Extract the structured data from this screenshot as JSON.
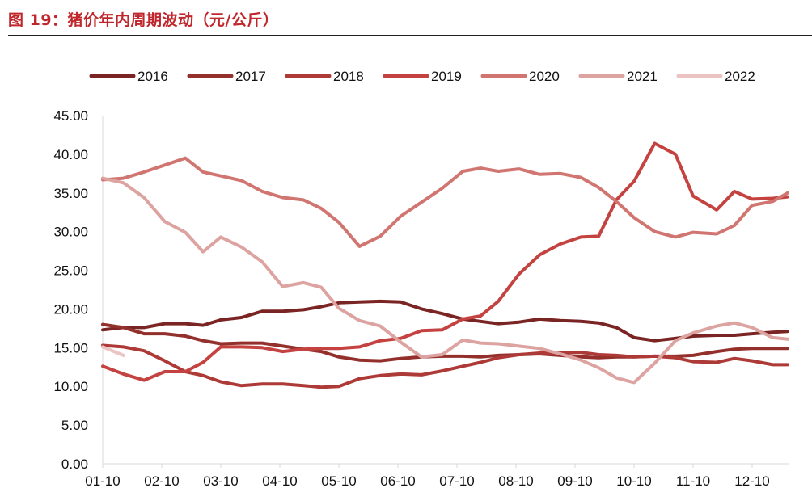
{
  "page": {
    "title": "图 19：猪价年内周期波动（元/公斤）"
  },
  "chart_data": {
    "type": "line",
    "title": "",
    "xlabel": "",
    "ylabel": "",
    "ylim": [
      0,
      45
    ],
    "yticks": [
      "0.00",
      "5.00",
      "10.00",
      "15.00",
      "20.00",
      "25.00",
      "30.00",
      "35.00",
      "40.00",
      "45.00"
    ],
    "categories": [
      "01-10",
      "02-10",
      "03-10",
      "04-10",
      "05-10",
      "06-10",
      "07-10",
      "08-10",
      "09-10",
      "10-10",
      "11-10",
      "12-10"
    ],
    "x_range": [
      0,
      11.6
    ],
    "grid": false,
    "legend_position": "top",
    "series": [
      {
        "name": "2016",
        "color": "#7a2424",
        "x": [
          0,
          0.35,
          0.7,
          1.05,
          1.4,
          1.7,
          2.0,
          2.35,
          2.7,
          3.05,
          3.4,
          3.7,
          4.0,
          4.35,
          4.7,
          5.05,
          5.4,
          5.75,
          6.1,
          6.4,
          6.7,
          7.05,
          7.4,
          7.75,
          8.1,
          8.4,
          8.7,
          9.0,
          9.35,
          9.7,
          10.0,
          10.4,
          10.7,
          11.0,
          11.35,
          11.6
        ],
        "y": [
          17.3,
          17.6,
          17.6,
          18.1,
          18.1,
          17.9,
          18.6,
          18.9,
          19.7,
          19.7,
          19.9,
          20.3,
          20.8,
          20.9,
          21.0,
          20.9,
          20.0,
          19.4,
          18.7,
          18.4,
          18.1,
          18.3,
          18.7,
          18.5,
          18.4,
          18.2,
          17.6,
          16.3,
          15.9,
          16.2,
          16.5,
          16.6,
          16.6,
          16.8,
          17.0,
          17.1
        ]
      },
      {
        "name": "2017",
        "color": "#93302c",
        "x": [
          0,
          0.35,
          0.7,
          1.05,
          1.4,
          1.7,
          2.0,
          2.35,
          2.7,
          3.05,
          3.4,
          3.7,
          4.0,
          4.35,
          4.7,
          5.05,
          5.4,
          5.75,
          6.1,
          6.4,
          6.7,
          7.05,
          7.4,
          7.75,
          8.1,
          8.4,
          8.7,
          9.0,
          9.35,
          9.7,
          10.0,
          10.4,
          10.7,
          11.0,
          11.35,
          11.6
        ],
        "y": [
          18.0,
          17.6,
          16.8,
          16.8,
          16.5,
          15.9,
          15.5,
          15.6,
          15.6,
          15.2,
          14.8,
          14.5,
          13.8,
          13.4,
          13.3,
          13.6,
          13.8,
          13.9,
          13.9,
          13.8,
          14.0,
          14.1,
          14.2,
          14.0,
          13.8,
          13.7,
          13.8,
          13.8,
          13.9,
          13.9,
          14.0,
          14.5,
          14.8,
          14.9,
          14.9,
          14.9
        ]
      },
      {
        "name": "2018",
        "color": "#ad3a36",
        "x": [
          0,
          0.35,
          0.7,
          1.05,
          1.4,
          1.7,
          2.0,
          2.35,
          2.7,
          3.05,
          3.4,
          3.7,
          4.0,
          4.35,
          4.7,
          5.05,
          5.4,
          5.75,
          6.1,
          6.4,
          6.7,
          7.05,
          7.4,
          7.75,
          8.1,
          8.4,
          8.7,
          9.0,
          9.35,
          9.7,
          10.0,
          10.4,
          10.7,
          11.0,
          11.35,
          11.6
        ],
        "y": [
          15.3,
          15.1,
          14.6,
          13.3,
          11.9,
          11.4,
          10.6,
          10.1,
          10.3,
          10.3,
          10.1,
          9.9,
          10.0,
          11.0,
          11.4,
          11.6,
          11.5,
          12.0,
          12.6,
          13.1,
          13.7,
          14.1,
          14.3,
          14.3,
          14.4,
          14.1,
          14.0,
          13.8,
          13.9,
          13.7,
          13.2,
          13.1,
          13.6,
          13.3,
          12.8,
          12.8
        ]
      },
      {
        "name": "2019",
        "color": "#c4423f",
        "x": [
          0,
          0.35,
          0.7,
          1.05,
          1.4,
          1.7,
          2.0,
          2.35,
          2.7,
          3.05,
          3.4,
          3.7,
          4.0,
          4.35,
          4.7,
          5.05,
          5.4,
          5.75,
          6.1,
          6.4,
          6.7,
          7.05,
          7.4,
          7.75,
          8.1,
          8.4,
          8.7,
          9.0,
          9.35,
          9.7,
          10.0,
          10.4,
          10.7,
          11.0,
          11.35,
          11.6
        ],
        "y": [
          12.6,
          11.6,
          10.8,
          11.9,
          11.9,
          13.1,
          15.1,
          15.1,
          15.0,
          14.5,
          14.8,
          14.9,
          14.9,
          15.1,
          15.9,
          16.2,
          17.2,
          17.3,
          18.7,
          19.1,
          21.0,
          24.5,
          27.0,
          28.4,
          29.3,
          29.4,
          34.1,
          36.5,
          41.4,
          40.0,
          34.6,
          32.8,
          35.2,
          34.2,
          34.3,
          34.5
        ]
      },
      {
        "name": "2020",
        "color": "#d17571",
        "x": [
          0,
          0.35,
          0.7,
          1.05,
          1.4,
          1.7,
          2.0,
          2.35,
          2.7,
          3.05,
          3.4,
          3.7,
          4.0,
          4.35,
          4.7,
          5.05,
          5.4,
          5.75,
          6.1,
          6.4,
          6.7,
          7.05,
          7.4,
          7.75,
          8.1,
          8.4,
          8.7,
          9.0,
          9.35,
          9.7,
          10.0,
          10.4,
          10.7,
          11.0,
          11.35,
          11.6
        ],
        "y": [
          36.7,
          36.9,
          37.7,
          38.6,
          39.5,
          37.7,
          37.2,
          36.6,
          35.2,
          34.4,
          34.1,
          33.0,
          31.2,
          28.1,
          29.4,
          32.0,
          33.8,
          35.6,
          37.8,
          38.2,
          37.8,
          38.1,
          37.4,
          37.5,
          37.0,
          35.7,
          33.9,
          31.8,
          30.0,
          29.3,
          29.9,
          29.7,
          30.8,
          33.4,
          33.9,
          35.0
        ]
      },
      {
        "name": "2021",
        "color": "#dca3a1",
        "x": [
          0,
          0.35,
          0.7,
          1.05,
          1.4,
          1.7,
          2.0,
          2.35,
          2.7,
          3.05,
          3.4,
          3.7,
          4.0,
          4.35,
          4.7,
          5.05,
          5.4,
          5.75,
          6.1,
          6.4,
          6.7,
          7.05,
          7.4,
          7.75,
          8.1,
          8.4,
          8.7,
          9.0,
          9.35,
          9.7,
          10.0,
          10.4,
          10.7,
          11.0,
          11.35,
          11.6
        ],
        "y": [
          36.9,
          36.3,
          34.4,
          31.3,
          29.9,
          27.4,
          29.3,
          28.0,
          26.1,
          22.9,
          23.4,
          22.8,
          20.1,
          18.5,
          17.8,
          15.7,
          13.8,
          14.1,
          16.0,
          15.6,
          15.5,
          15.2,
          14.9,
          14.2,
          13.4,
          12.4,
          11.1,
          10.5,
          13.0,
          15.9,
          16.9,
          17.8,
          18.2,
          17.6,
          16.3,
          16.1
        ]
      },
      {
        "name": "2022",
        "color": "#eac3c2",
        "x": [
          0,
          0.35
        ],
        "y": [
          15.1,
          14.0
        ]
      }
    ]
  }
}
